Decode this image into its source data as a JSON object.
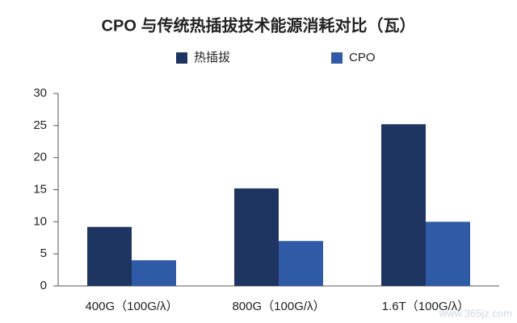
{
  "chart_data": {
    "type": "bar",
    "title": "CPO 与传统热插拔技术能源消耗对比（瓦）",
    "categories": [
      "400G（100G/λ）",
      "800G（100G/λ）",
      "1.6T（100G/λ）"
    ],
    "series": [
      {
        "name": "热插拔",
        "color": "#1f3561",
        "values": [
          9.2,
          15.2,
          25.2
        ]
      },
      {
        "name": "CPO",
        "color": "#2f5aa6",
        "values": [
          4,
          7,
          10
        ]
      }
    ],
    "ylim": [
      0,
      30
    ],
    "yticks": [
      0,
      5,
      10,
      15,
      20,
      25,
      30
    ],
    "grid": false
  },
  "watermark": "www.365jz.com"
}
